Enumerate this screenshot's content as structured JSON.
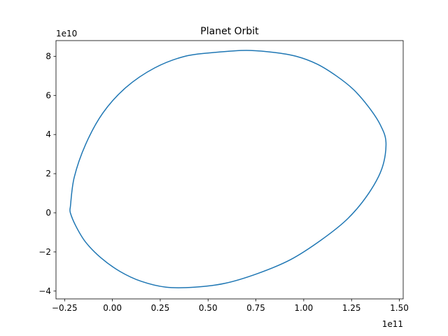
{
  "chart_data": {
    "type": "line",
    "title": "Planet Orbit",
    "xlabel": "",
    "ylabel": "",
    "x_offset_label": "1e11",
    "y_offset_label": "1e10",
    "xlim": [
      -2.95,
      15.2
    ],
    "ylim": [
      -4.4,
      8.8
    ],
    "x_ticks": [
      {
        "value": -2.5,
        "label": "−0.25"
      },
      {
        "value": 0,
        "label": "0.00"
      },
      {
        "value": 2.5,
        "label": "0.25"
      },
      {
        "value": 5,
        "label": "0.50"
      },
      {
        "value": 7.5,
        "label": "0.75"
      },
      {
        "value": 10,
        "label": "1.00"
      },
      {
        "value": 12.5,
        "label": "1.25"
      },
      {
        "value": 15,
        "label": "1.50"
      }
    ],
    "y_ticks": [
      {
        "value": -4,
        "label": "−4"
      },
      {
        "value": -2,
        "label": "−2"
      },
      {
        "value": 0,
        "label": "0"
      },
      {
        "value": 2,
        "label": "2"
      },
      {
        "value": 4,
        "label": "4"
      },
      {
        "value": 6,
        "label": "6"
      },
      {
        "value": 8,
        "label": "8"
      }
    ],
    "grid": false,
    "series": [
      {
        "color": "#1f77b4",
        "x": [
          -2.2,
          -2.0,
          -1.4,
          -0.5,
          0.7,
          2.2,
          3.8,
          5.4,
          7.0,
          8.4,
          9.6,
          10.7,
          11.7,
          12.6,
          13.4,
          14.0,
          14.3,
          14.1,
          13.4,
          12.3,
          10.9,
          9.3,
          7.6,
          5.9,
          4.3,
          2.8,
          1.5,
          0.4,
          -0.6,
          -1.4,
          -1.9,
          -2.2,
          -2.2
        ],
        "y": [
          0.3,
          1.8,
          3.5,
          5.1,
          6.4,
          7.4,
          8.0,
          8.2,
          8.3,
          8.2,
          8.0,
          7.6,
          7.0,
          6.3,
          5.4,
          4.5,
          3.6,
          2.3,
          1.0,
          -0.3,
          -1.4,
          -2.4,
          -3.1,
          -3.6,
          -3.8,
          -3.8,
          -3.5,
          -3.0,
          -2.3,
          -1.5,
          -0.7,
          0.0,
          0.3
        ]
      }
    ]
  }
}
